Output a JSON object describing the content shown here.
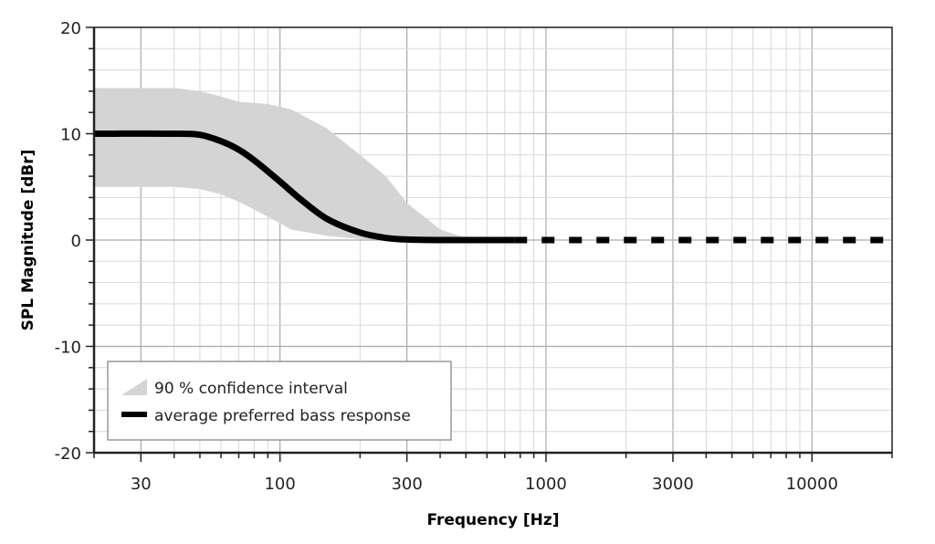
{
  "chart_data": {
    "type": "line",
    "xscale": "log",
    "xlabel": "Frequency [Hz]",
    "ylabel": "SPL Magnitude [dBr]",
    "xlim": [
      20,
      20000
    ],
    "ylim": [
      -20,
      20
    ],
    "xticks": [
      30,
      100,
      300,
      1000,
      3000,
      10000
    ],
    "xtick_labels": [
      "30",
      "100",
      "300",
      "1000",
      "3000",
      "10000"
    ],
    "yticks": [
      20,
      10,
      0,
      -10,
      -20
    ],
    "ytick_labels": [
      "20",
      "10",
      "0",
      "-10",
      "-20"
    ],
    "grid": true,
    "legend_position": "bottom-left",
    "legend": [
      "90 % confidence interval",
      "average preferred bass response"
    ],
    "colors": {
      "band": "#d4d4d4",
      "line": "#000000",
      "grid": "#c8c8c8"
    },
    "band": {
      "name": "90 % confidence interval",
      "x": [
        20,
        40,
        50,
        60,
        70,
        90,
        110,
        150,
        200,
        250,
        300,
        400,
        500,
        600,
        760
      ],
      "upper": [
        14.3,
        14.3,
        14.0,
        13.5,
        13.0,
        12.8,
        12.3,
        10.5,
        8.0,
        6.0,
        3.5,
        1.0,
        0.2,
        0.0,
        0.0
      ],
      "lower": [
        5.0,
        5.0,
        4.8,
        4.3,
        3.6,
        2.2,
        1.0,
        0.4,
        0.1,
        0.0,
        0.0,
        0.0,
        0.0,
        0.0,
        0.0
      ]
    },
    "series": [
      {
        "name": "average preferred bass response",
        "style": "solid",
        "x": [
          20,
          40,
          50,
          60,
          70,
          80,
          100,
          120,
          150,
          200,
          250,
          300,
          400,
          760
        ],
        "y": [
          10,
          10,
          9.9,
          9.3,
          8.5,
          7.5,
          5.5,
          3.8,
          2.0,
          0.7,
          0.2,
          0.05,
          0,
          0
        ]
      },
      {
        "name": "average preferred bass response (extension)",
        "style": "dashed",
        "x": [
          760,
          20000
        ],
        "y": [
          0,
          0
        ]
      }
    ]
  }
}
